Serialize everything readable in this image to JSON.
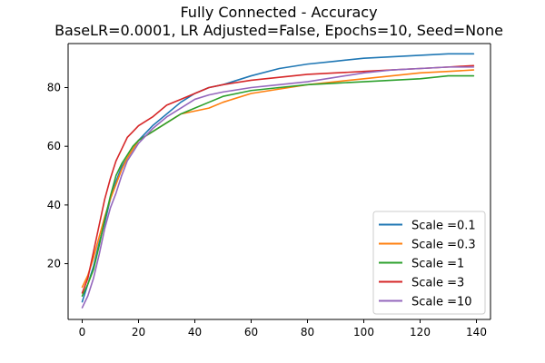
{
  "chart_data": {
    "type": "line",
    "title": "Fully Connected - Accuracy",
    "subtitle": "BaseLR=0.0001, LR Adjusted=False, Epochs=10, Seed=None",
    "xlabel": "",
    "ylabel": "",
    "xlim": [
      -5,
      145
    ],
    "ylim": [
      1,
      95
    ],
    "xticks": [
      0,
      20,
      40,
      60,
      80,
      100,
      120,
      140
    ],
    "yticks": [
      20,
      40,
      60,
      80
    ],
    "grid": false,
    "legend_position": "lower-right",
    "x": [
      0,
      2,
      4,
      6,
      8,
      10,
      12,
      14,
      16,
      18,
      20,
      25,
      30,
      35,
      40,
      45,
      50,
      60,
      70,
      80,
      90,
      100,
      110,
      120,
      130,
      139
    ],
    "series": [
      {
        "name": "Scale =0.1",
        "color": "#1f77b4",
        "values": [
          7,
          13,
          19,
          27,
          34,
          42,
          48,
          53,
          56,
          59,
          62,
          67,
          71,
          75,
          78,
          80,
          81,
          84,
          86.5,
          88,
          89,
          90,
          90.5,
          91,
          91.5,
          91.5
        ]
      },
      {
        "name": "Scale =0.3",
        "color": "#ff7f0e",
        "values": [
          12,
          16,
          22,
          29,
          36,
          42,
          47,
          52,
          56,
          59,
          62,
          65,
          68,
          71,
          72,
          73,
          75,
          78,
          79.5,
          81,
          82,
          83,
          84,
          85,
          85.5,
          86
        ]
      },
      {
        "name": "Scale =1",
        "color": "#2ca02c",
        "values": [
          9,
          13,
          18,
          26,
          35,
          43,
          50,
          54,
          57,
          60,
          62,
          65,
          68,
          71,
          73,
          75,
          77,
          79,
          80,
          81,
          81.5,
          82,
          82.5,
          83,
          84,
          84
        ]
      },
      {
        "name": "Scale =3",
        "color": "#d62728",
        "values": [
          10,
          15,
          24,
          33,
          42,
          49,
          55,
          59,
          63,
          65,
          67,
          70,
          74,
          76,
          78,
          80,
          81,
          82.5,
          83.5,
          84.5,
          85,
          85.5,
          86,
          86.5,
          87,
          87.5
        ]
      },
      {
        "name": "Scale =10",
        "color": "#9467bd",
        "values": [
          5,
          9,
          15,
          23,
          32,
          39,
          44,
          50,
          55,
          58,
          61,
          66,
          70,
          73,
          76,
          77.5,
          78.5,
          80,
          81,
          82,
          83.5,
          85,
          86,
          86.5,
          87,
          87
        ]
      }
    ]
  }
}
